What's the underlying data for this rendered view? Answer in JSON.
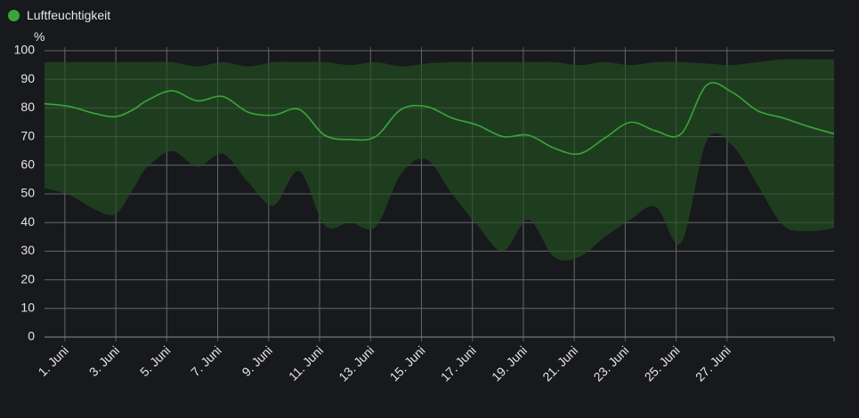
{
  "legend": {
    "label": "Luftfeuchtigkeit",
    "color": "#3aa63a"
  },
  "chart_data": {
    "type": "area",
    "title": "",
    "unit": "%",
    "ylim": [
      0,
      100
    ],
    "yticks": [
      0,
      10,
      20,
      30,
      40,
      50,
      60,
      70,
      80,
      90,
      100
    ],
    "xlim_days": [
      0.2,
      31.2
    ],
    "grid": true,
    "legend_position": "top-left",
    "x_ticks": [
      {
        "day": 1,
        "label": "1. Juni"
      },
      {
        "day": 3,
        "label": "3. Juni"
      },
      {
        "day": 5,
        "label": "5. Juni"
      },
      {
        "day": 7,
        "label": "7. Juni"
      },
      {
        "day": 9,
        "label": "9. Juni"
      },
      {
        "day": 11,
        "label": "11. Juni"
      },
      {
        "day": 13,
        "label": "13. Juni"
      },
      {
        "day": 15,
        "label": "15. Juni"
      },
      {
        "day": 17,
        "label": "17. Juni"
      },
      {
        "day": 19,
        "label": "19. Juni"
      },
      {
        "day": 21,
        "label": "21. Juni"
      },
      {
        "day": 23,
        "label": "23. Juni"
      },
      {
        "day": 25,
        "label": "25. Juni"
      },
      {
        "day": 27,
        "label": "27. Juni"
      }
    ],
    "series": [
      {
        "name": "Luftfeuchtigkeit",
        "color": "#3aa63a",
        "band_color": "#1f4020",
        "points": [
          {
            "day": 0.2,
            "mean": 81.5,
            "min": 52,
            "max": 96
          },
          {
            "day": 1.2,
            "mean": 80.5,
            "min": 49.5,
            "max": 96
          },
          {
            "day": 2.2,
            "mean": 78,
            "min": 44.5,
            "max": 96
          },
          {
            "day": 3.0,
            "mean": 77,
            "min": 43,
            "max": 96
          },
          {
            "day": 3.7,
            "mean": 79.5,
            "min": 52,
            "max": 96
          },
          {
            "day": 4.2,
            "mean": 82.5,
            "min": 59,
            "max": 96
          },
          {
            "day": 5.2,
            "mean": 86,
            "min": 65,
            "max": 96
          },
          {
            "day": 6.2,
            "mean": 82.5,
            "min": 59.5,
            "max": 94.5
          },
          {
            "day": 7.2,
            "mean": 84,
            "min": 64,
            "max": 96
          },
          {
            "day": 8.2,
            "mean": 78.5,
            "min": 54,
            "max": 94.5
          },
          {
            "day": 9.2,
            "mean": 77.5,
            "min": 46,
            "max": 96
          },
          {
            "day": 10.2,
            "mean": 79.5,
            "min": 58,
            "max": 96
          },
          {
            "day": 11.2,
            "mean": 70.5,
            "min": 39,
            "max": 96
          },
          {
            "day": 12.2,
            "mean": 69,
            "min": 40,
            "max": 95
          },
          {
            "day": 13.2,
            "mean": 70,
            "min": 38.5,
            "max": 96
          },
          {
            "day": 14.2,
            "mean": 79.5,
            "min": 57,
            "max": 94.5
          },
          {
            "day": 15.2,
            "mean": 80.5,
            "min": 62,
            "max": 95.5
          },
          {
            "day": 16.2,
            "mean": 76.5,
            "min": 50,
            "max": 96
          },
          {
            "day": 17.2,
            "mean": 74,
            "min": 39,
            "max": 96
          },
          {
            "day": 18.2,
            "mean": 70,
            "min": 30,
            "max": 96
          },
          {
            "day": 19.2,
            "mean": 70.5,
            "min": 41,
            "max": 96
          },
          {
            "day": 20.2,
            "mean": 66,
            "min": 28,
            "max": 96
          },
          {
            "day": 21.2,
            "mean": 64,
            "min": 28,
            "max": 95
          },
          {
            "day": 22.2,
            "mean": 69.5,
            "min": 35,
            "max": 96
          },
          {
            "day": 23.2,
            "mean": 75,
            "min": 41,
            "max": 95
          },
          {
            "day": 24.2,
            "mean": 72,
            "min": 45.5,
            "max": 96
          },
          {
            "day": 25.2,
            "mean": 71,
            "min": 33,
            "max": 96
          },
          {
            "day": 26.2,
            "mean": 88,
            "min": 68.5,
            "max": 95.5
          },
          {
            "day": 27.2,
            "mean": 85.5,
            "min": 67,
            "max": 95
          },
          {
            "day": 28.2,
            "mean": 79,
            "min": 53,
            "max": 96
          },
          {
            "day": 29.2,
            "mean": 76.5,
            "min": 39,
            "max": 97
          },
          {
            "day": 30.2,
            "mean": 73.5,
            "min": 37,
            "max": 97
          },
          {
            "day": 31.2,
            "mean": 71,
            "min": 38,
            "max": 97
          }
        ]
      }
    ]
  }
}
